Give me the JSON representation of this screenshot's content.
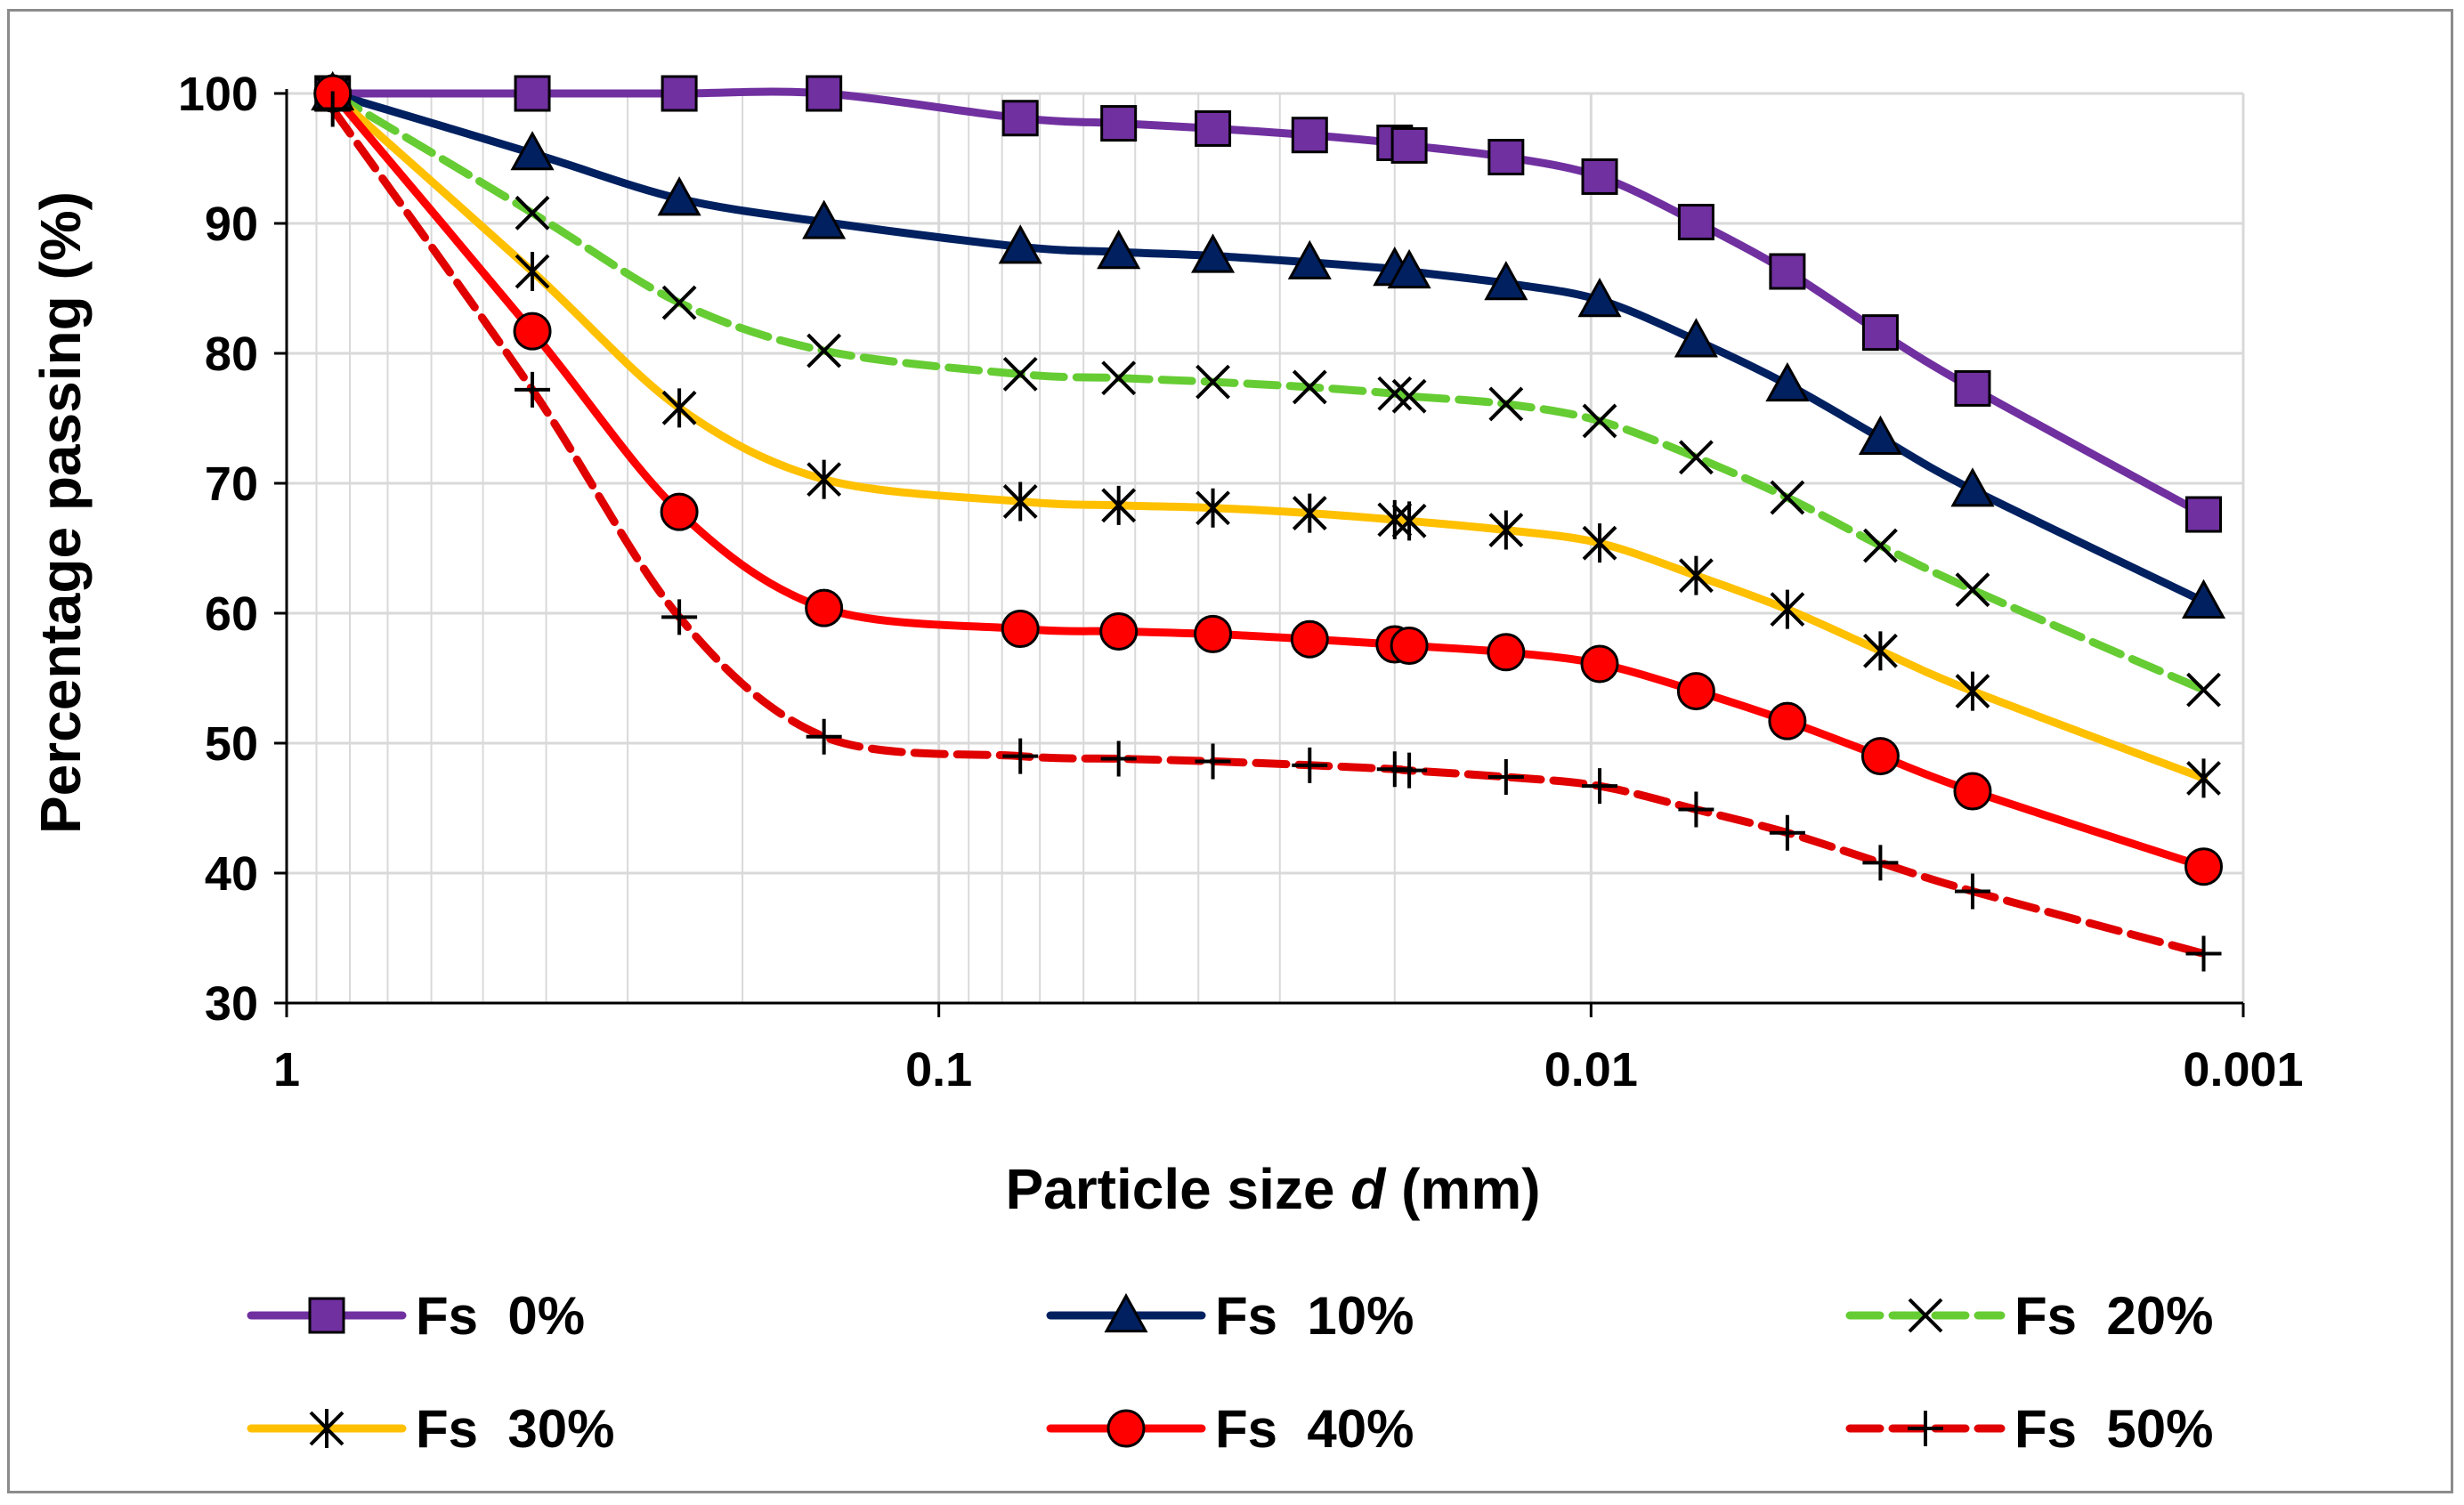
{
  "chart_data": {
    "type": "line",
    "title": "",
    "xlabel_prefix": "Particle size ",
    "xlabel_var": "d",
    "xlabel_suffix": " (mm)",
    "ylabel": "Percentage passing (%)",
    "xscale": "log",
    "x_reversed": true,
    "xlim": [
      1,
      0.001
    ],
    "ylim": [
      30,
      100
    ],
    "xticks": [
      1,
      0.1,
      0.01,
      0.001
    ],
    "xtick_labels": [
      "1",
      "0.1",
      "0.01",
      "0.001"
    ],
    "yticks": [
      30,
      40,
      50,
      60,
      70,
      80,
      90,
      100
    ],
    "ytick_labels": [
      "30",
      "40",
      "50",
      "60",
      "70",
      "80",
      "90",
      "100"
    ],
    "grid": true,
    "legend_position": "bottom",
    "x": [
      0.85,
      0.42,
      0.25,
      0.15,
      0.075,
      0.053,
      0.038,
      0.027,
      0.02,
      0.019,
      0.0135,
      0.0097,
      0.0069,
      0.005,
      0.0036,
      0.0026,
      0.00115
    ],
    "series": [
      {
        "name": "Fs  0%",
        "color": "#7030a0",
        "marker": "square",
        "dashed": false,
        "values": [
          100,
          100,
          100,
          100,
          98.1,
          97.7,
          97.3,
          96.8,
          96.2,
          96.0,
          95.1,
          93.6,
          90.1,
          86.3,
          81.6,
          77.3,
          67.6
        ]
      },
      {
        "name": "Fs  10%",
        "color": "#002060",
        "marker": "triangle",
        "dashed": false,
        "values": [
          100,
          95.4,
          91.9,
          90.1,
          88.2,
          87.8,
          87.5,
          87.0,
          86.5,
          86.3,
          85.4,
          84.1,
          81.0,
          77.6,
          73.5,
          69.5,
          60.9
        ]
      },
      {
        "name": "Fs  20%",
        "color": "#66cc33",
        "marker": "x",
        "dashed": true,
        "values": [
          100,
          90.8,
          83.9,
          80.2,
          78.4,
          78.1,
          77.8,
          77.4,
          76.9,
          76.7,
          76.1,
          74.8,
          72.0,
          68.9,
          65.2,
          61.8,
          54.1
        ]
      },
      {
        "name": "Fs  30%",
        "color": "#ffc000",
        "marker": "star",
        "dashed": false,
        "values": [
          100,
          86.3,
          75.8,
          70.3,
          68.6,
          68.3,
          68.1,
          67.7,
          67.2,
          67.1,
          66.4,
          65.4,
          62.9,
          60.3,
          57.1,
          54.0,
          47.3
        ]
      },
      {
        "name": "Fs  40%",
        "color": "#ff0000",
        "marker": "circle",
        "dashed": false,
        "values": [
          100,
          81.7,
          67.8,
          60.4,
          58.8,
          58.6,
          58.4,
          58.0,
          57.6,
          57.5,
          57.0,
          56.1,
          54.0,
          51.7,
          49.0,
          46.3,
          40.5
        ]
      },
      {
        "name": "Fs  50%",
        "color": "#e00000",
        "marker": "plus",
        "dashed": true,
        "values": [
          98.8,
          77.2,
          59.7,
          50.5,
          49.0,
          48.8,
          48.6,
          48.3,
          48.0,
          47.9,
          47.4,
          46.7,
          44.9,
          43.1,
          40.8,
          38.6,
          33.8
        ]
      }
    ]
  }
}
